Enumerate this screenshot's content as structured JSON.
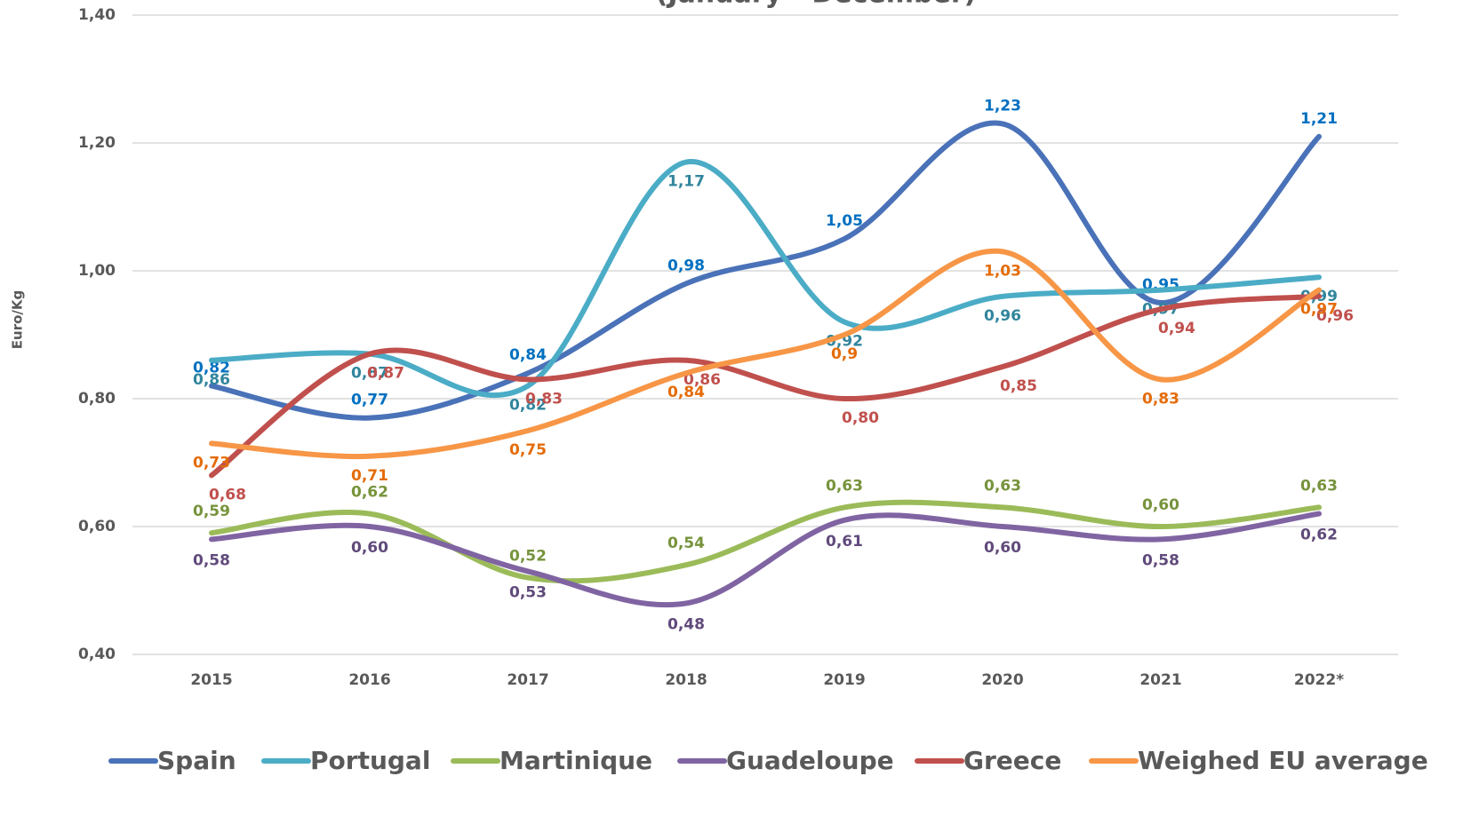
{
  "chart_data": {
    "type": "line",
    "subtitle": "(January - December)",
    "ylabel": "Euro/Kg",
    "categories": [
      "2015",
      "2016",
      "2017",
      "2018",
      "2019",
      "2020",
      "2021",
      "2022*"
    ],
    "ylim": [
      0.4,
      1.4
    ],
    "yticks": [
      {
        "value": 0.4,
        "label": "0,40"
      },
      {
        "value": 0.6,
        "label": "0,60"
      },
      {
        "value": 0.8,
        "label": "0,80"
      },
      {
        "value": 1.0,
        "label": "1,00"
      },
      {
        "value": 1.2,
        "label": "1,20"
      },
      {
        "value": 1.4,
        "label": "1,40"
      }
    ],
    "grid": true,
    "legend": "bottom",
    "series": [
      {
        "name": "Spain",
        "color": "#4a72b8",
        "label_color": "#0070c0",
        "values": [
          0.82,
          0.77,
          0.84,
          0.98,
          1.05,
          1.23,
          0.95,
          1.21
        ],
        "value_labels": [
          "0,82",
          "0,77",
          "0,84",
          "0,98",
          "1,05",
          "1,23",
          "0,95",
          "1,21"
        ]
      },
      {
        "name": "Portugal",
        "color": "#4bacc6",
        "label_color": "#31859c",
        "values": [
          0.86,
          0.87,
          0.82,
          1.17,
          0.92,
          0.96,
          0.97,
          0.99
        ],
        "value_labels": [
          "0,86",
          "0,87",
          "0,82",
          "1,17",
          "0,92",
          "0,96",
          "0,97",
          "0,99"
        ]
      },
      {
        "name": "Martinique",
        "color": "#9bbb59",
        "label_color": "#77933c",
        "values": [
          0.59,
          0.62,
          0.52,
          0.54,
          0.63,
          0.63,
          0.6,
          0.63
        ],
        "value_labels": [
          "0,59",
          "0,62",
          "0,52",
          "0,54",
          "0,63",
          "0,63",
          "0,60",
          "0,63"
        ]
      },
      {
        "name": "Guadeloupe",
        "color": "#8064a2",
        "label_color": "#604a7b",
        "values": [
          0.58,
          0.6,
          0.53,
          0.48,
          0.61,
          0.6,
          0.58,
          0.62
        ],
        "value_labels": [
          "0,58",
          "0,60",
          "0,53",
          "0,48",
          "0,61",
          "0,60",
          "0,58",
          "0,62"
        ]
      },
      {
        "name": "Greece",
        "color": "#c0504d",
        "label_color": "#c0504d",
        "values": [
          0.68,
          0.87,
          0.83,
          0.86,
          0.8,
          0.85,
          0.94,
          0.96
        ],
        "value_labels": [
          "0,68",
          "0,87",
          "0,83",
          "0,86",
          "0,80",
          "0,85",
          "0,94",
          "0,96"
        ]
      },
      {
        "name": "Weighed EU average",
        "color": "#f79646",
        "label_color": "#e46c0a",
        "values": [
          0.73,
          0.71,
          0.75,
          0.84,
          0.9,
          1.03,
          0.83,
          0.97
        ],
        "value_labels": [
          "0,73",
          "0,71",
          "0,75",
          "0,84",
          "0,9",
          "1,03",
          "0,83",
          "0,97"
        ]
      }
    ]
  }
}
